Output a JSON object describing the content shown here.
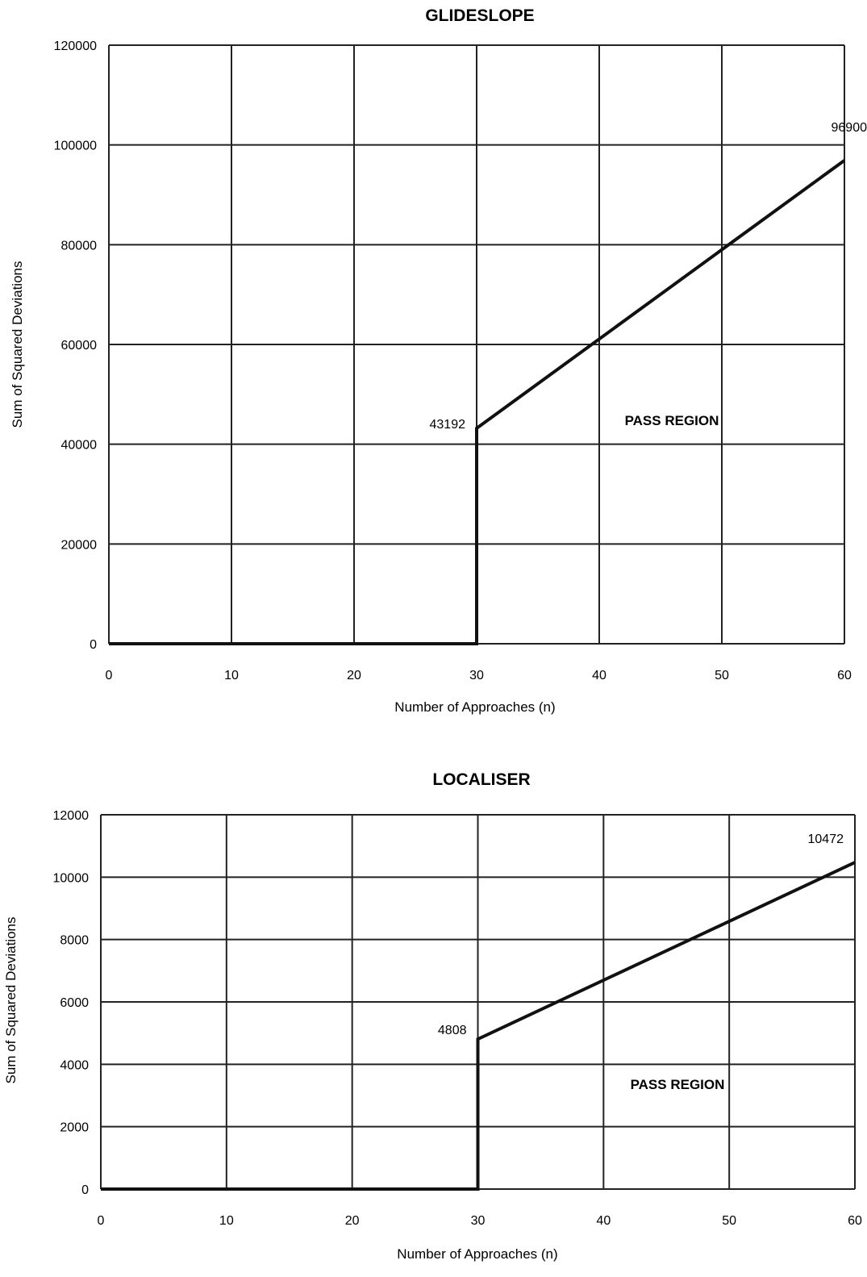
{
  "chart_data": [
    {
      "type": "line",
      "title": "GLIDESLOPE",
      "xlabel": "Number of Approaches (n)",
      "ylabel": "Sum of Squared Deviations",
      "xlim": [
        0,
        60
      ],
      "ylim": [
        0,
        120000
      ],
      "x_ticks": [
        "0",
        "10",
        "20",
        "30",
        "40",
        "50",
        "60"
      ],
      "y_ticks": [
        "0",
        "20000",
        "40000",
        "60000",
        "80000",
        "100000",
        "120000"
      ],
      "grid": true,
      "region_label": "PASS REGION",
      "series": [
        {
          "x": [
            0,
            30,
            30,
            60
          ],
          "y": [
            0,
            0,
            43192,
            96900
          ]
        }
      ],
      "data_labels": [
        {
          "x": 30,
          "y": 43192,
          "text": "43192"
        },
        {
          "x": 60,
          "y": 96900,
          "text": "96900"
        }
      ]
    },
    {
      "type": "line",
      "title": "LOCALISER",
      "xlabel": "Number of Approaches (n)",
      "ylabel": "Sum of Squared Deviations",
      "xlim": [
        0,
        60
      ],
      "ylim": [
        0,
        12000
      ],
      "x_ticks": [
        "0",
        "10",
        "20",
        "30",
        "40",
        "50",
        "60"
      ],
      "y_ticks": [
        "0",
        "2000",
        "4000",
        "6000",
        "8000",
        "10000",
        "12000"
      ],
      "grid": true,
      "region_label": "PASS REGION",
      "series": [
        {
          "x": [
            0,
            30,
            30,
            60
          ],
          "y": [
            0,
            0,
            4808,
            10472
          ]
        }
      ],
      "data_labels": [
        {
          "x": 30,
          "y": 4808,
          "text": "4808"
        },
        {
          "x": 60,
          "y": 10472,
          "text": "10472"
        }
      ]
    }
  ]
}
